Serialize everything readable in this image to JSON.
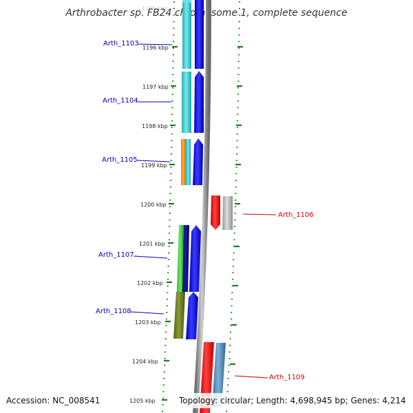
{
  "title": "Arthrobacter sp. FB24 chromosome 1, complete sequence",
  "footer": {
    "accession": "Accession: NC_008541",
    "topology": "Topology: circular; Length: 4,698,945 bp; Genes: 4,214"
  },
  "scale": {
    "top_partial_label": "1195 kbp",
    "ticks": [
      "1196 kbp",
      "1197 kbp",
      "1198 kbp",
      "1199 kbp",
      "1200 kbp",
      "1201 kbp",
      "1202 kbp",
      "1203 kbp",
      "1204 kbp",
      "1205 kbp"
    ]
  },
  "genes": [
    {
      "name": "Arth_1103",
      "strand": "forward",
      "color": "#0000bb"
    },
    {
      "name": "Arth_1104",
      "strand": "forward",
      "color": "#0000bb"
    },
    {
      "name": "Arth_1105",
      "strand": "forward",
      "color": "#0000bb"
    },
    {
      "name": "Arth_1106",
      "strand": "reverse",
      "color": "#cc0000"
    },
    {
      "name": "Arth_1107",
      "strand": "forward",
      "color": "#0000bb"
    },
    {
      "name": "Arth_1108",
      "strand": "forward",
      "color": "#0000bb"
    },
    {
      "name": "Arth_1109",
      "strand": "reverse",
      "color": "#cc0000"
    }
  ],
  "colors": {
    "forward_cds": "#0000ee",
    "reverse_cds": "#ee0000",
    "backbone": "#888888",
    "dotted_track": "#1a7a1a",
    "cog_cyan": "#22c4c9",
    "cog_orange": "#ff9900",
    "cog_green": "#33cc33",
    "cog_navy": "#000080",
    "cog_olive": "#667722",
    "cog_gray": "#b0b0b0",
    "cog_steelblue": "#4682b4"
  }
}
